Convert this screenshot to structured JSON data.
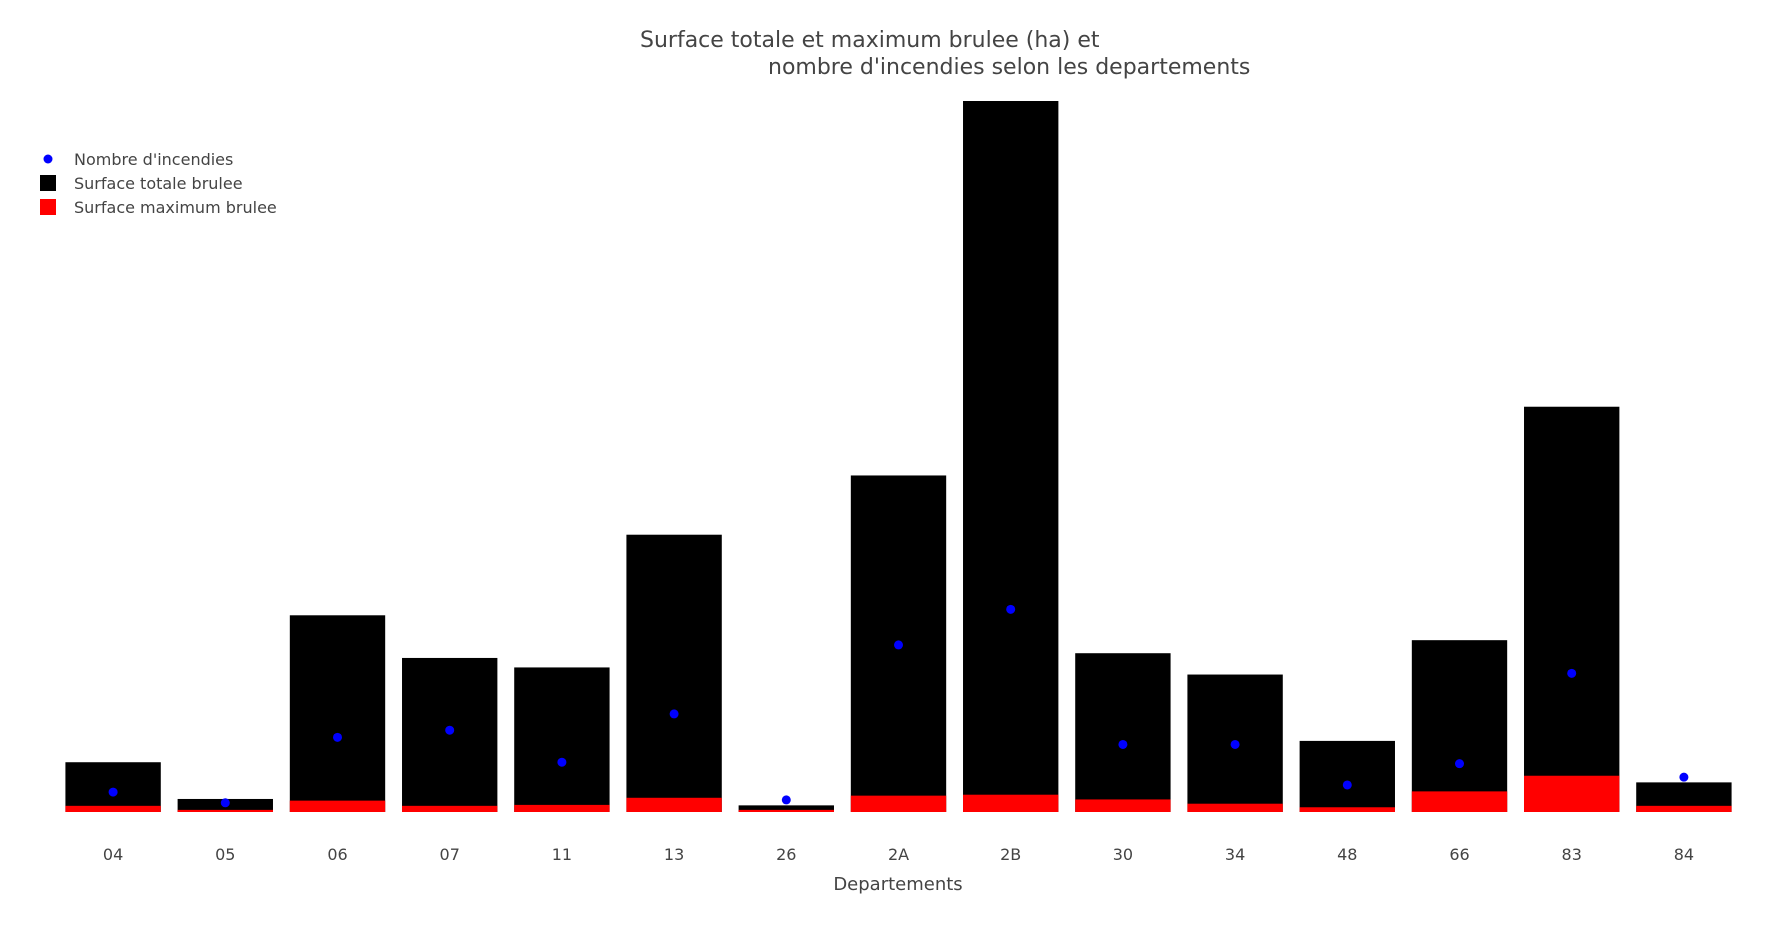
{
  "colors": {
    "total": "#000000",
    "max": "#ff0000",
    "count": "#0000ff",
    "text": "#444444"
  },
  "chart_data": {
    "type": "bar",
    "title_line1": "Surface totale et maximum brulee (ha) et",
    "title_line2": "nombre d'incendies selon les departements",
    "xlabel": "Departements",
    "ylabel": "",
    "grid": false,
    "legend_placement": "top-left",
    "ylim": [
      0,
      30000
    ],
    "categories": [
      "04",
      "05",
      "06",
      "07",
      "11",
      "13",
      "26",
      "2A",
      "2B",
      "30",
      "34",
      "48",
      "66",
      "83",
      "84"
    ],
    "series": [
      {
        "name": "Nombre d'incendies",
        "kind": "scatter",
        "values": [
          280,
          130,
          1050,
          1150,
          700,
          1380,
          170,
          2350,
          2850,
          950,
          950,
          380,
          680,
          1950,
          490
        ]
      },
      {
        "name": "Surface totale brulee",
        "kind": "bar",
        "values": [
          2100,
          550,
          8300,
          6500,
          6100,
          11700,
          280,
          14200,
          30000,
          6700,
          5800,
          3000,
          7250,
          17100,
          1250
        ]
      },
      {
        "name": "Surface maximum brulee",
        "kind": "bar",
        "values": [
          260,
          90,
          480,
          260,
          300,
          600,
          90,
          690,
          730,
          530,
          350,
          200,
          870,
          1530,
          260
        ]
      }
    ]
  }
}
